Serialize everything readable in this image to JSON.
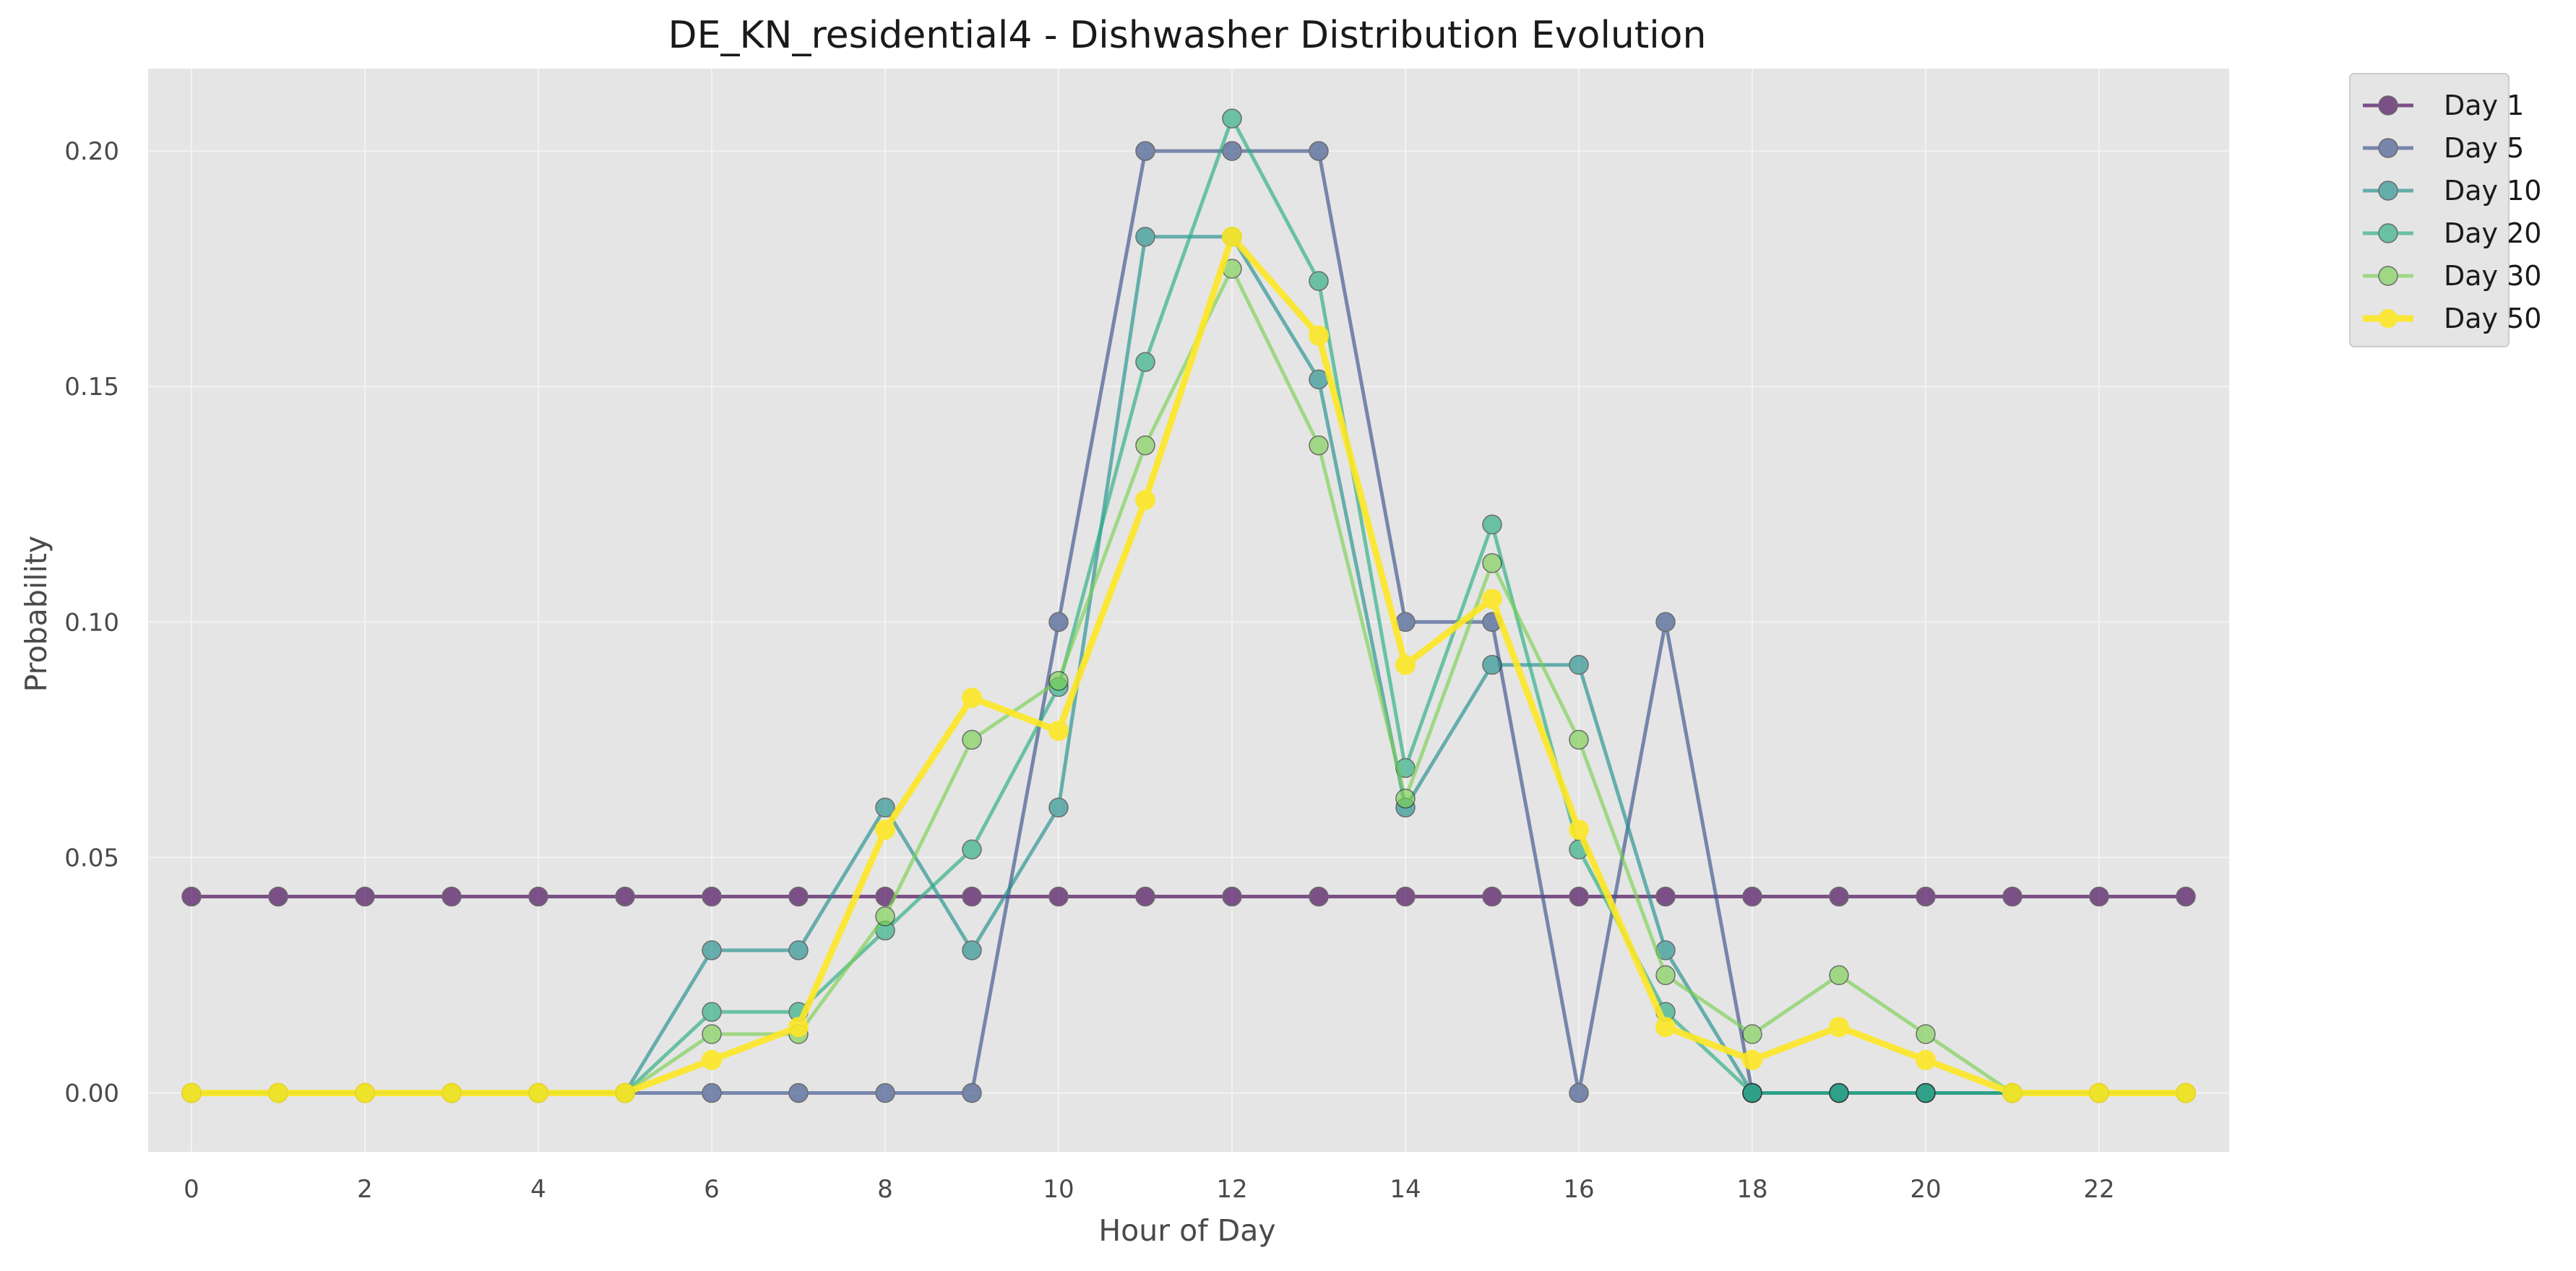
{
  "chart_data": {
    "type": "line",
    "title": "DE_KN_residential4 - Dishwasher Distribution Evolution",
    "xlabel": "Hour of Day",
    "ylabel": "Probability",
    "xlim": [
      -0.5,
      23.5
    ],
    "ylim": [
      -0.0125,
      0.2175
    ],
    "xticks": [
      0,
      2,
      4,
      6,
      8,
      10,
      12,
      14,
      16,
      18,
      20,
      22
    ],
    "yticks": [
      0.0,
      0.05,
      0.1,
      0.15,
      0.2
    ],
    "ytick_labels": [
      "0.00",
      "0.05",
      "0.10",
      "0.15",
      "0.20"
    ],
    "grid": true,
    "legend_position": "outside-top-right",
    "x": [
      0,
      1,
      2,
      3,
      4,
      5,
      6,
      7,
      8,
      9,
      10,
      11,
      12,
      13,
      14,
      15,
      16,
      17,
      18,
      19,
      20,
      21,
      22,
      23
    ],
    "series": [
      {
        "name": "Day 1",
        "color": "#440154",
        "opacity": 0.65,
        "values": [
          0.0417,
          0.0417,
          0.0417,
          0.0417,
          0.0417,
          0.0417,
          0.0417,
          0.0417,
          0.0417,
          0.0417,
          0.0417,
          0.0417,
          0.0417,
          0.0417,
          0.0417,
          0.0417,
          0.0417,
          0.0417,
          0.0417,
          0.0417,
          0.0417,
          0.0417,
          0.0417,
          0.0417
        ]
      },
      {
        "name": "Day 5",
        "color": "#3b528b",
        "opacity": 0.65,
        "values": [
          0,
          0,
          0,
          0,
          0,
          0,
          0,
          0,
          0,
          0,
          0.1,
          0.2,
          0.2,
          0.2,
          0.1,
          0.1,
          0,
          0.1,
          0,
          0,
          0,
          0,
          0,
          0
        ]
      },
      {
        "name": "Day 10",
        "color": "#21908d",
        "opacity": 0.65,
        "values": [
          0,
          0,
          0,
          0,
          0,
          0,
          0.0303,
          0.0303,
          0.0606,
          0.0303,
          0.0606,
          0.1818,
          0.1818,
          0.1515,
          0.0606,
          0.0909,
          0.0909,
          0.0303,
          0,
          0,
          0,
          0,
          0,
          0
        ]
      },
      {
        "name": "Day 20",
        "color": "#27ad81",
        "opacity": 0.65,
        "values": [
          0,
          0,
          0,
          0,
          0,
          0,
          0.0172,
          0.0172,
          0.0345,
          0.0517,
          0.0862,
          0.1552,
          0.2069,
          0.1724,
          0.069,
          0.1207,
          0.0517,
          0.0172,
          0,
          0,
          0,
          0,
          0,
          0
        ]
      },
      {
        "name": "Day 30",
        "color": "#7ad151",
        "opacity": 0.65,
        "values": [
          0,
          0,
          0,
          0,
          0,
          0,
          0.0125,
          0.0125,
          0.0375,
          0.075,
          0.0875,
          0.1375,
          0.175,
          0.1375,
          0.0625,
          0.1125,
          0.075,
          0.025,
          0.0125,
          0.025,
          0.0125,
          0,
          0,
          0
        ]
      },
      {
        "name": "Day 50",
        "color": "#fde725",
        "opacity": 0.9,
        "thick": true,
        "values": [
          0,
          0,
          0,
          0,
          0,
          0,
          0.007,
          0.014,
          0.0559,
          0.0839,
          0.0769,
          0.1259,
          0.1818,
          0.1608,
          0.0909,
          0.1049,
          0.0559,
          0.014,
          0.007,
          0.014,
          0.007,
          0,
          0,
          0
        ]
      }
    ]
  }
}
